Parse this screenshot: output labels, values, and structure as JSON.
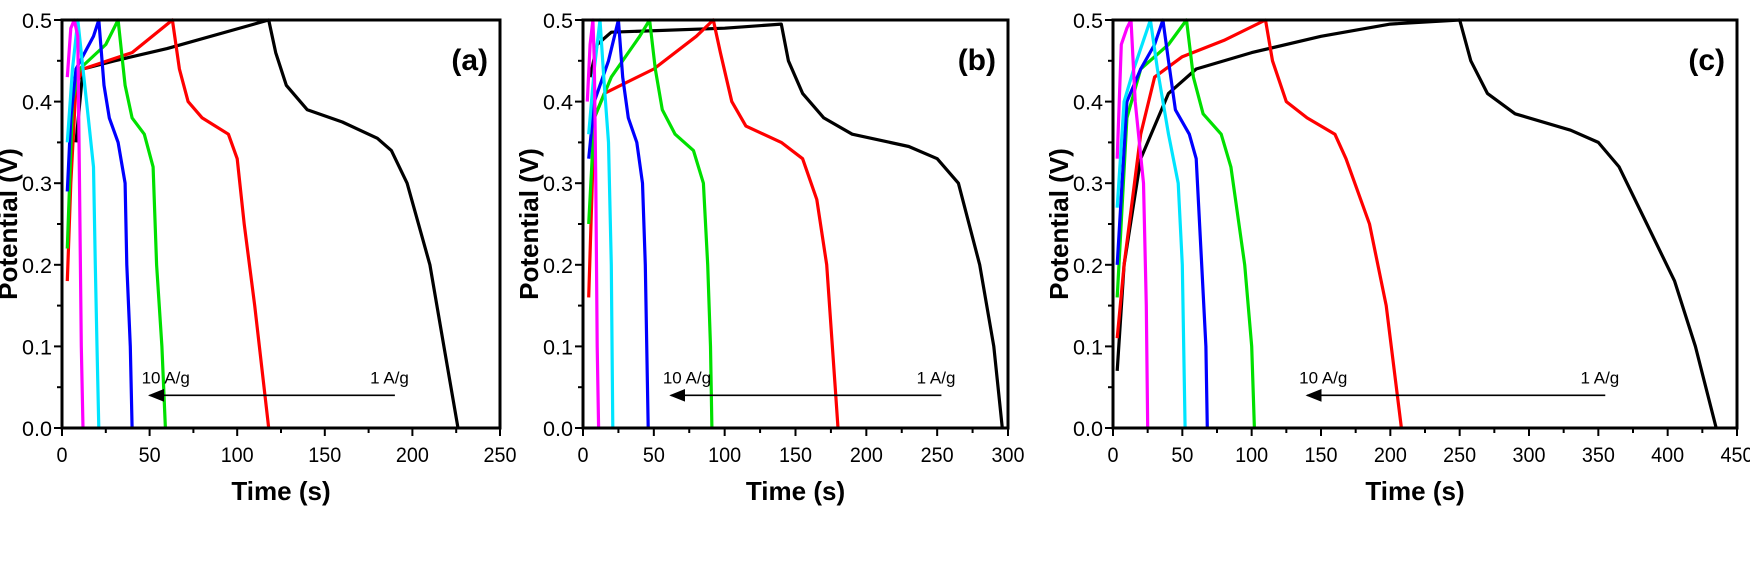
{
  "chart_data": [
    {
      "type": "line",
      "panel_label": "(a)",
      "xlabel": "Time (s)",
      "ylabel": "Potential (V)",
      "xlim": [
        0,
        250
      ],
      "ylim": [
        0,
        0.5
      ],
      "xticks": [
        0,
        50,
        100,
        150,
        200,
        250
      ],
      "yticks": [
        "0.0",
        "0.1",
        "0.2",
        "0.3",
        "0.4",
        "0.5"
      ],
      "annotation": {
        "from_label": "1 A/g",
        "to_label": "10 A/g",
        "arrow_from": 190,
        "arrow_to": 50,
        "arrow_v": 0.04
      },
      "series": [
        {
          "name": "black",
          "color": "#000000",
          "points": [
            [
              8,
              0.35
            ],
            [
              12,
              0.44
            ],
            [
              30,
              0.45
            ],
            [
              60,
              0.465
            ],
            [
              118,
              0.5
            ],
            [
              122,
              0.46
            ],
            [
              128,
              0.42
            ],
            [
              140,
              0.39
            ],
            [
              160,
              0.375
            ],
            [
              180,
              0.355
            ],
            [
              188,
              0.34
            ],
            [
              197,
              0.3
            ],
            [
              210,
              0.2
            ],
            [
              218,
              0.1
            ],
            [
              226,
              0
            ]
          ]
        },
        {
          "name": "red",
          "color": "#ff0000",
          "points": [
            [
              3,
              0.18
            ],
            [
              5,
              0.3
            ],
            [
              8,
              0.42
            ],
            [
              12,
              0.44
            ],
            [
              40,
              0.46
            ],
            [
              63,
              0.5
            ],
            [
              67,
              0.44
            ],
            [
              72,
              0.4
            ],
            [
              80,
              0.38
            ],
            [
              95,
              0.36
            ],
            [
              100,
              0.33
            ],
            [
              104,
              0.25
            ],
            [
              110,
              0.15
            ],
            [
              118,
              0
            ]
          ]
        },
        {
          "name": "green",
          "color": "#00e000",
          "points": [
            [
              3,
              0.22
            ],
            [
              6,
              0.4
            ],
            [
              10,
              0.44
            ],
            [
              25,
              0.47
            ],
            [
              32,
              0.5
            ],
            [
              36,
              0.42
            ],
            [
              40,
              0.38
            ],
            [
              47,
              0.36
            ],
            [
              52,
              0.32
            ],
            [
              54,
              0.2
            ],
            [
              57,
              0.1
            ],
            [
              59,
              0
            ]
          ]
        },
        {
          "name": "blue",
          "color": "#0000ff",
          "points": [
            [
              3,
              0.29
            ],
            [
              5,
              0.38
            ],
            [
              8,
              0.44
            ],
            [
              18,
              0.48
            ],
            [
              21,
              0.5
            ],
            [
              24,
              0.42
            ],
            [
              27,
              0.38
            ],
            [
              32,
              0.35
            ],
            [
              36,
              0.3
            ],
            [
              37,
              0.2
            ],
            [
              39,
              0.1
            ],
            [
              40,
              0
            ]
          ]
        },
        {
          "name": "cyan",
          "color": "#00e5ff",
          "points": [
            [
              3,
              0.35
            ],
            [
              6,
              0.44
            ],
            [
              9,
              0.5
            ],
            [
              12,
              0.44
            ],
            [
              15,
              0.38
            ],
            [
              18,
              0.32
            ],
            [
              19,
              0.2
            ],
            [
              20,
              0.1
            ],
            [
              21,
              0
            ]
          ]
        },
        {
          "name": "magenta",
          "color": "#ff00ff",
          "points": [
            [
              3,
              0.43
            ],
            [
              5,
              0.49
            ],
            [
              7,
              0.5
            ],
            [
              9,
              0.48
            ],
            [
              10,
              0.3
            ],
            [
              11,
              0.1
            ],
            [
              12,
              0
            ]
          ]
        }
      ]
    },
    {
      "type": "line",
      "panel_label": "(b)",
      "xlabel": "Time (s)",
      "ylabel": "Potential (V)",
      "xlim": [
        0,
        300
      ],
      "ylim": [
        0,
        0.5
      ],
      "xticks": [
        0,
        50,
        100,
        150,
        200,
        250,
        300
      ],
      "yticks": [
        "0.0",
        "0.1",
        "0.2",
        "0.3",
        "0.4",
        "0.5"
      ],
      "annotation": {
        "from_label": "1 A/g",
        "to_label": "10 A/g",
        "arrow_from": 253,
        "arrow_to": 62,
        "arrow_v": 0.04
      },
      "series": [
        {
          "name": "black",
          "color": "#000000",
          "points": [
            [
              5,
              0.43
            ],
            [
              10,
              0.47
            ],
            [
              20,
              0.485
            ],
            [
              100,
              0.49
            ],
            [
              140,
              0.495
            ],
            [
              145,
              0.45
            ],
            [
              155,
              0.41
            ],
            [
              170,
              0.38
            ],
            [
              190,
              0.36
            ],
            [
              230,
              0.345
            ],
            [
              250,
              0.33
            ],
            [
              265,
              0.3
            ],
            [
              280,
              0.2
            ],
            [
              290,
              0.1
            ],
            [
              296,
              0
            ]
          ]
        },
        {
          "name": "red",
          "color": "#ff0000",
          "points": [
            [
              4,
              0.16
            ],
            [
              8,
              0.38
            ],
            [
              15,
              0.41
            ],
            [
              50,
              0.44
            ],
            [
              80,
              0.48
            ],
            [
              92,
              0.5
            ],
            [
              97,
              0.46
            ],
            [
              105,
              0.4
            ],
            [
              115,
              0.37
            ],
            [
              140,
              0.35
            ],
            [
              155,
              0.33
            ],
            [
              165,
              0.28
            ],
            [
              172,
              0.2
            ],
            [
              178,
              0.05
            ],
            [
              180,
              0
            ]
          ]
        },
        {
          "name": "green",
          "color": "#00e000",
          "points": [
            [
              4,
              0.25
            ],
            [
              8,
              0.38
            ],
            [
              20,
              0.43
            ],
            [
              40,
              0.48
            ],
            [
              47,
              0.5
            ],
            [
              51,
              0.44
            ],
            [
              56,
              0.39
            ],
            [
              65,
              0.36
            ],
            [
              78,
              0.34
            ],
            [
              85,
              0.3
            ],
            [
              88,
              0.2
            ],
            [
              90,
              0.1
            ],
            [
              91,
              0
            ]
          ]
        },
        {
          "name": "blue",
          "color": "#0000ff",
          "points": [
            [
              4,
              0.33
            ],
            [
              8,
              0.4
            ],
            [
              18,
              0.45
            ],
            [
              25,
              0.5
            ],
            [
              28,
              0.43
            ],
            [
              32,
              0.38
            ],
            [
              38,
              0.35
            ],
            [
              42,
              0.3
            ],
            [
              44,
              0.2
            ],
            [
              46,
              0
            ]
          ]
        },
        {
          "name": "cyan",
          "color": "#00e5ff",
          "points": [
            [
              4,
              0.36
            ],
            [
              8,
              0.44
            ],
            [
              12,
              0.5
            ],
            [
              15,
              0.42
            ],
            [
              18,
              0.35
            ],
            [
              20,
              0.2
            ],
            [
              21,
              0
            ]
          ]
        },
        {
          "name": "magenta",
          "color": "#ff00ff",
          "points": [
            [
              3,
              0.4
            ],
            [
              5,
              0.47
            ],
            [
              7,
              0.5
            ],
            [
              8,
              0.45
            ],
            [
              9,
              0.3
            ],
            [
              10,
              0.1
            ],
            [
              11,
              0
            ]
          ]
        }
      ]
    },
    {
      "type": "line",
      "panel_label": "(c)",
      "xlabel": "Time (s)",
      "ylabel": "Potential (V)",
      "xlim": [
        0,
        450
      ],
      "ylim": [
        0,
        0.5
      ],
      "xticks": [
        0,
        50,
        100,
        150,
        200,
        250,
        300,
        350,
        400,
        450
      ],
      "yticks": [
        "0.0",
        "0.1",
        "0.2",
        "0.3",
        "0.4",
        "0.5"
      ],
      "annotation": {
        "from_label": "1 A/g",
        "to_label": "10 A/g",
        "arrow_from": 355,
        "arrow_to": 140,
        "arrow_v": 0.04
      },
      "series": [
        {
          "name": "black",
          "color": "#000000",
          "points": [
            [
              3,
              0.07
            ],
            [
              8,
              0.2
            ],
            [
              20,
              0.33
            ],
            [
              40,
              0.41
            ],
            [
              60,
              0.44
            ],
            [
              100,
              0.46
            ],
            [
              150,
              0.48
            ],
            [
              200,
              0.495
            ],
            [
              250,
              0.5
            ],
            [
              258,
              0.45
            ],
            [
              270,
              0.41
            ],
            [
              290,
              0.385
            ],
            [
              330,
              0.365
            ],
            [
              350,
              0.35
            ],
            [
              365,
              0.32
            ],
            [
              385,
              0.25
            ],
            [
              405,
              0.18
            ],
            [
              420,
              0.1
            ],
            [
              435,
              0
            ]
          ]
        },
        {
          "name": "red",
          "color": "#ff0000",
          "points": [
            [
              3,
              0.11
            ],
            [
              8,
              0.2
            ],
            [
              20,
              0.36
            ],
            [
              30,
              0.43
            ],
            [
              50,
              0.455
            ],
            [
              80,
              0.475
            ],
            [
              110,
              0.5
            ],
            [
              115,
              0.45
            ],
            [
              125,
              0.4
            ],
            [
              140,
              0.38
            ],
            [
              160,
              0.36
            ],
            [
              168,
              0.33
            ],
            [
              185,
              0.25
            ],
            [
              197,
              0.15
            ],
            [
              208,
              0
            ]
          ]
        },
        {
          "name": "green",
          "color": "#00e000",
          "points": [
            [
              3,
              0.16
            ],
            [
              10,
              0.38
            ],
            [
              20,
              0.44
            ],
            [
              40,
              0.47
            ],
            [
              53,
              0.5
            ],
            [
              58,
              0.43
            ],
            [
              65,
              0.385
            ],
            [
              78,
              0.36
            ],
            [
              85,
              0.32
            ],
            [
              95,
              0.2
            ],
            [
              100,
              0.1
            ],
            [
              102,
              0
            ]
          ]
        },
        {
          "name": "blue",
          "color": "#0000ff",
          "points": [
            [
              3,
              0.2
            ],
            [
              10,
              0.4
            ],
            [
              20,
              0.44
            ],
            [
              30,
              0.47
            ],
            [
              36,
              0.5
            ],
            [
              40,
              0.45
            ],
            [
              45,
              0.39
            ],
            [
              55,
              0.36
            ],
            [
              60,
              0.33
            ],
            [
              64,
              0.2
            ],
            [
              67,
              0.1
            ],
            [
              68,
              0
            ]
          ]
        },
        {
          "name": "cyan",
          "color": "#00e5ff",
          "points": [
            [
              3,
              0.27
            ],
            [
              8,
              0.4
            ],
            [
              15,
              0.44
            ],
            [
              27,
              0.5
            ],
            [
              32,
              0.44
            ],
            [
              40,
              0.36
            ],
            [
              47,
              0.3
            ],
            [
              50,
              0.2
            ],
            [
              52,
              0
            ]
          ]
        },
        {
          "name": "magenta",
          "color": "#ff00ff",
          "points": [
            [
              3,
              0.33
            ],
            [
              6,
              0.47
            ],
            [
              10,
              0.49
            ],
            [
              13,
              0.5
            ],
            [
              16,
              0.4
            ],
            [
              22,
              0.3
            ],
            [
              24,
              0.15
            ],
            [
              25,
              0
            ]
          ]
        }
      ]
    }
  ]
}
